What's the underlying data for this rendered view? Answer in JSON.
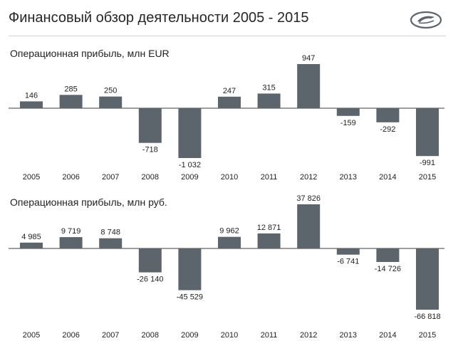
{
  "page": {
    "title": "Финансовый обзор деятельности 2005 - 2015",
    "logo_icon": "lada-boat-logo-icon"
  },
  "colors": {
    "bar": "#5c646c",
    "axis": "#3b3b3b",
    "title_rule": "#d2d2d2"
  },
  "chart_data": [
    {
      "type": "bar",
      "title": "Операционная прибыль, млн EUR",
      "categories": [
        "2005",
        "2006",
        "2007",
        "2008",
        "2009",
        "2010",
        "2011",
        "2012",
        "2013",
        "2014",
        "2015"
      ],
      "values": [
        146,
        285,
        250,
        -718,
        -1032,
        247,
        315,
        947,
        -159,
        -292,
        -991
      ],
      "value_labels": [
        "146",
        "285",
        "250",
        "-718",
        "-1 032",
        "247",
        "315",
        "947",
        "-159",
        "-292",
        "-991"
      ],
      "xlabel": "",
      "ylabel": "",
      "ylim": [
        -1032,
        947
      ],
      "grid": false,
      "legend": "none"
    },
    {
      "type": "bar",
      "title": "Операционная прибыль, млн руб.",
      "categories": [
        "2005",
        "2006",
        "2007",
        "2008",
        "2009",
        "2010",
        "2011",
        "2012",
        "2013",
        "2014",
        "2015"
      ],
      "values": [
        4985,
        9719,
        8748,
        -26140,
        -45529,
        9962,
        12871,
        37826,
        -6741,
        -14726,
        -66818
      ],
      "value_labels": [
        "4 985",
        "9 719",
        "8 748",
        "-26 140",
        "-45 529",
        "9 962",
        "12 871",
        "37 826",
        "-6 741",
        "-14 726",
        "-66 818"
      ],
      "xlabel": "",
      "ylabel": "",
      "ylim": [
        -66818,
        37826
      ],
      "grid": false,
      "legend": "none"
    }
  ]
}
